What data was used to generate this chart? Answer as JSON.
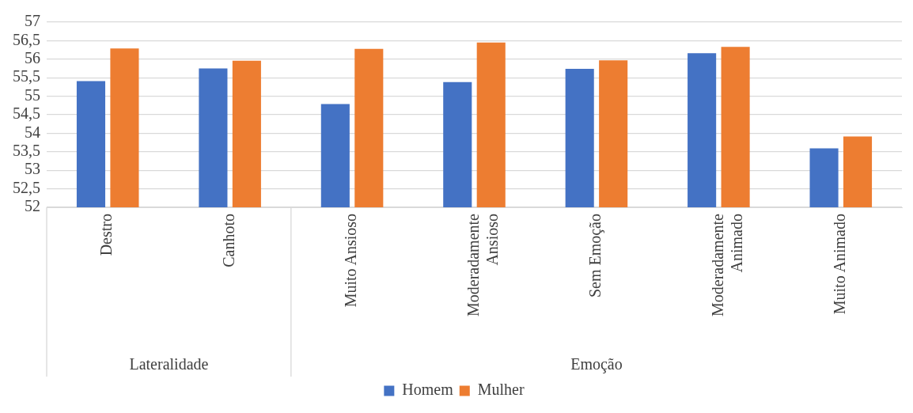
{
  "chart_data": {
    "type": "bar",
    "categories": [
      "Destro",
      "Canhoto",
      "Muito Ansioso",
      "Moderadamente Ansioso",
      "Sem Emoção",
      "Moderadamente Animado",
      "Muito Animado"
    ],
    "series": [
      {
        "name": "Homem",
        "color": "#4472c4",
        "values": [
          55.41,
          55.75,
          54.79,
          55.38,
          55.74,
          56.16,
          53.59
        ]
      },
      {
        "name": "Mulher",
        "color": "#ed7d31",
        "values": [
          56.29,
          55.96,
          56.28,
          56.45,
          55.97,
          56.33,
          53.91
        ]
      }
    ],
    "ylim": [
      52,
      57
    ],
    "yticks": [
      52,
      {
        "value": 52.5,
        "label": "52,5"
      },
      53,
      {
        "value": 53.5,
        "label": "53,5"
      },
      54,
      {
        "value": 54.5,
        "label": "54,5"
      },
      55,
      {
        "value": 55.5,
        "label": "55,5"
      },
      56,
      {
        "value": 56.5,
        "label": "56,5"
      },
      57
    ],
    "grid": "y",
    "legend": "bottom",
    "annotations": [
      "Lateralidade",
      "Emoção"
    ]
  }
}
